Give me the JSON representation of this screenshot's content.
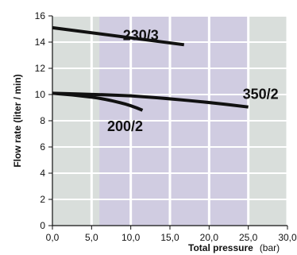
{
  "chart_data": {
    "type": "line",
    "xlim": [
      0,
      30
    ],
    "ylim": [
      0,
      16
    ],
    "x_ticks": [
      "0,0",
      "5,0",
      "10,0",
      "15,0",
      "20,0",
      "25,0",
      "30,0"
    ],
    "y_ticks": [
      "0",
      "2",
      "4",
      "6",
      "8",
      "10",
      "12",
      "14",
      "16"
    ],
    "ylabel": "Flow rate (liter / min)",
    "xlabel_bold": "Total pressure",
    "xlabel_unit": "(bar)",
    "grid": true,
    "shaded_x_range": [
      6,
      25
    ],
    "colors": {
      "plot_background": "#d9dedb",
      "shaded_band": "#d0cce1",
      "grid": "#ffffff",
      "line": "#111111"
    },
    "series": [
      {
        "name": "230/3",
        "x": [
          0,
          16.8
        ],
        "y": [
          15.1,
          13.8
        ]
      },
      {
        "name": "350/2",
        "x": [
          0,
          10,
          25
        ],
        "y": [
          10.1,
          9.9,
          9.05
        ]
      },
      {
        "name": "200/2",
        "x": [
          0,
          5,
          8.5,
          11.5
        ],
        "y": [
          10.1,
          9.8,
          9.4,
          8.8
        ]
      }
    ]
  }
}
